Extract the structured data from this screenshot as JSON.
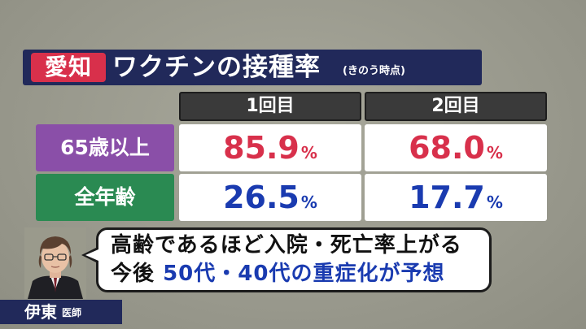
{
  "title": {
    "region": "愛知",
    "main": "ワクチンの接種率",
    "note": "(きのう時点)"
  },
  "table": {
    "columns": [
      "1回目",
      "2回目"
    ],
    "rows": [
      {
        "label": "65歳以上",
        "values": [
          "85.9",
          "68.0"
        ],
        "unit": "%"
      },
      {
        "label": "全年齢",
        "values": [
          "26.5",
          "17.7"
        ],
        "unit": "%"
      }
    ]
  },
  "caption": {
    "line1": "高齢であるほど入院・死亡率上がる",
    "line2_prefix": "今後",
    "line2_highlight": "50代・40代の重症化が予想"
  },
  "speaker": {
    "name": "伊東",
    "title": "医師"
  },
  "colors": {
    "navy": "#21295a",
    "red": "#d8304b",
    "blue": "#1a3bb0",
    "purple": "#8a4fa8",
    "green": "#2a8a52"
  }
}
